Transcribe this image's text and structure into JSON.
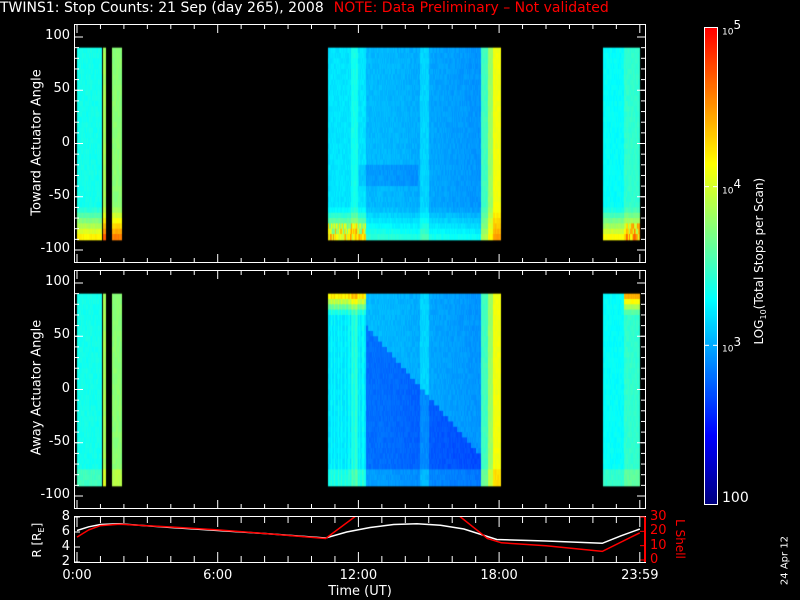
{
  "title": {
    "main": "TWINS1: Stop Counts: 21 Sep (day 265), 2008",
    "note": "NOTE: Data Preliminary – Not validated",
    "note_color": "#ff0000"
  },
  "chart_data": [
    {
      "type": "heatmap",
      "panel": "toward",
      "ylabel": "Toward Actuator Angle",
      "ylim": [
        -110,
        110
      ],
      "yticks": [
        "100",
        "50",
        "0",
        "-50",
        "-100"
      ],
      "data_angle_range": [
        -90,
        90
      ],
      "data_coverage_hours": [
        [
          0.0,
          1.05
        ],
        [
          1.1,
          1.2
        ],
        [
          1.45,
          1.9
        ],
        [
          10.7,
          18.05
        ],
        [
          22.4,
          24.0
        ]
      ]
    },
    {
      "type": "heatmap",
      "panel": "away",
      "ylabel": "Away Actuator Angle",
      "ylim": [
        -110,
        110
      ],
      "yticks": [
        "100",
        "50",
        "0",
        "-50",
        "-100"
      ],
      "data_angle_range": [
        -90,
        90
      ],
      "data_coverage_hours": [
        [
          0.0,
          1.05
        ],
        [
          1.1,
          1.2
        ],
        [
          1.45,
          1.9
        ],
        [
          10.7,
          18.05
        ],
        [
          22.4,
          24.0
        ]
      ]
    },
    {
      "type": "line",
      "xlabel": "Time (UT)",
      "xticks": [
        "0:00",
        "6:00",
        "12:00",
        "18:00",
        "23:59"
      ],
      "xlim": [
        0,
        24
      ],
      "left_axis": {
        "label": "R [Rₑ]",
        "label_main": "R [R",
        "label_sub": "E",
        "label_end": "]",
        "ylim": [
          2,
          8
        ],
        "ticks": [
          "8",
          "6",
          "4",
          "2"
        ]
      },
      "right_axis": {
        "label": "L Shell",
        "ylim": [
          0,
          30
        ],
        "ticks": [
          "30",
          "20",
          "10",
          "0"
        ],
        "color": "#ff0000"
      },
      "series": [
        {
          "axis": "left",
          "color": "#ffffff",
          "x": [
            0,
            0.5,
            1.0,
            1.8,
            4,
            6,
            8,
            10.6,
            11.5,
            12.5,
            13.5,
            14.5,
            15.5,
            16.5,
            17.9,
            20,
            22.4,
            23.2,
            24
          ],
          "y": [
            6.2,
            6.7,
            7.0,
            7.1,
            6.6,
            6.2,
            5.8,
            5.2,
            6.0,
            6.6,
            7.0,
            7.1,
            6.9,
            6.4,
            5.0,
            4.8,
            4.5,
            5.5,
            6.4
          ]
        },
        {
          "axis": "right",
          "color": "#ff0000",
          "x": [
            0,
            0.5,
            1.0,
            1.8,
            4,
            6,
            8,
            10.6,
            12.0,
            16.2,
            17.5,
            18.1,
            20,
            22.4,
            24
          ],
          "y": [
            16,
            21,
            24,
            25,
            23,
            21,
            18.5,
            15,
            32,
            32,
            15,
            12,
            10,
            6,
            19
          ]
        }
      ]
    }
  ],
  "colorbar": {
    "label_main": "LOG",
    "label_sub": "10",
    "label_rest": "(Total Stops per Scan)",
    "range": [
      100,
      100000
    ],
    "scale": "log",
    "ticks": [
      {
        "base": "10",
        "exp": "5"
      },
      {
        "base": "10",
        "exp": "4"
      },
      {
        "base": "10",
        "exp": "3"
      },
      {
        "base": "100",
        "exp": ""
      }
    ],
    "colormap": [
      "#000080",
      "#0000ff",
      "#0080ff",
      "#00ffff",
      "#80ff80",
      "#ffff00",
      "#ff8000",
      "#ff0000"
    ]
  },
  "footer": {
    "date_stamp": "24 Apr 12"
  }
}
